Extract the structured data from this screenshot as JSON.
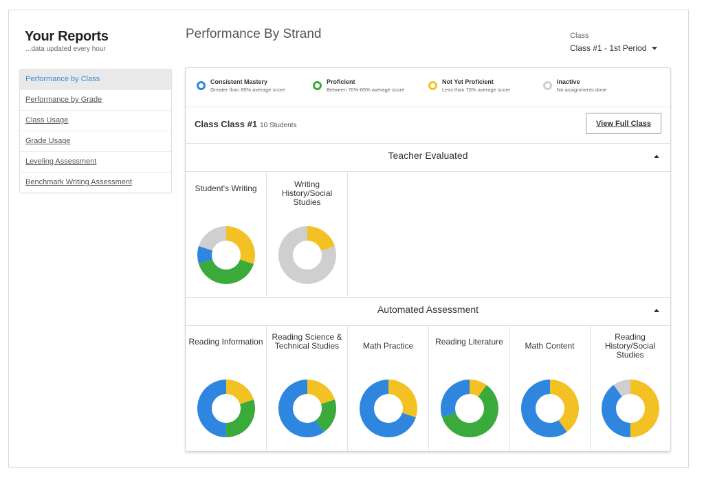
{
  "sidebar": {
    "title": "Your Reports",
    "subtitle": "...data updated every hour",
    "items": [
      {
        "label": "Performance by Class",
        "active": true
      },
      {
        "label": "Performance by Grade"
      },
      {
        "label": "Class Usage"
      },
      {
        "label": "Grade Usage"
      },
      {
        "label": "Leveling Assessment"
      },
      {
        "label": "Benchmark Writing Assessment"
      }
    ]
  },
  "header": {
    "title": "Performance By Strand",
    "class_label": "Class",
    "class_value": "Class #1 - 1st Period"
  },
  "colors": {
    "mastery": "#2e86de",
    "proficient": "#3aaa3a",
    "not_yet": "#f3c123",
    "inactive": "#cfcfcf"
  },
  "legend": [
    {
      "name": "Consistent Mastery",
      "desc": "Greater than 85% average score",
      "color": "#2e86de"
    },
    {
      "name": "Proficient",
      "desc": "Between 70%-85% average score",
      "color": "#3aaa3a"
    },
    {
      "name": "Not Yet Proficient",
      "desc": "Less than 70% average score",
      "color": "#f3c123"
    },
    {
      "name": "Inactive",
      "desc": "No assignments done",
      "color": "#cfcfcf"
    }
  ],
  "class_info": {
    "name": "Class Class #1",
    "count": "10 Students",
    "view_button": "View Full Class"
  },
  "sections": [
    {
      "title": "Teacher Evaluated",
      "strands": [
        {
          "title": "Student's Writing",
          "distribution": {
            "mastery": 1,
            "proficient": 4,
            "not_yet": 3,
            "inactive": 2
          }
        },
        {
          "title": "Writing History/Social Studies",
          "distribution": {
            "mastery": 0,
            "proficient": 0,
            "not_yet": 2,
            "inactive": 8
          }
        }
      ]
    },
    {
      "title": "Automated Assessment",
      "strands": [
        {
          "title": "Reading Information",
          "distribution": {
            "mastery": 5,
            "proficient": 3,
            "not_yet": 2,
            "inactive": 0
          }
        },
        {
          "title": "Reading Science & Technical Studies",
          "distribution": {
            "mastery": 6,
            "proficient": 2,
            "not_yet": 2,
            "inactive": 0
          }
        },
        {
          "title": "Math Practice",
          "distribution": {
            "mastery": 7,
            "proficient": 0,
            "not_yet": 3,
            "inactive": 0
          }
        },
        {
          "title": "Reading Literature",
          "distribution": {
            "mastery": 3,
            "proficient": 6,
            "not_yet": 1,
            "inactive": 0
          }
        },
        {
          "title": "Math Content",
          "distribution": {
            "mastery": 6,
            "proficient": 0,
            "not_yet": 4,
            "inactive": 0
          }
        },
        {
          "title": "Reading History/Social Studies",
          "distribution": {
            "mastery": 4,
            "proficient": 0,
            "not_yet": 5,
            "inactive": 1
          }
        }
      ]
    }
  ]
}
